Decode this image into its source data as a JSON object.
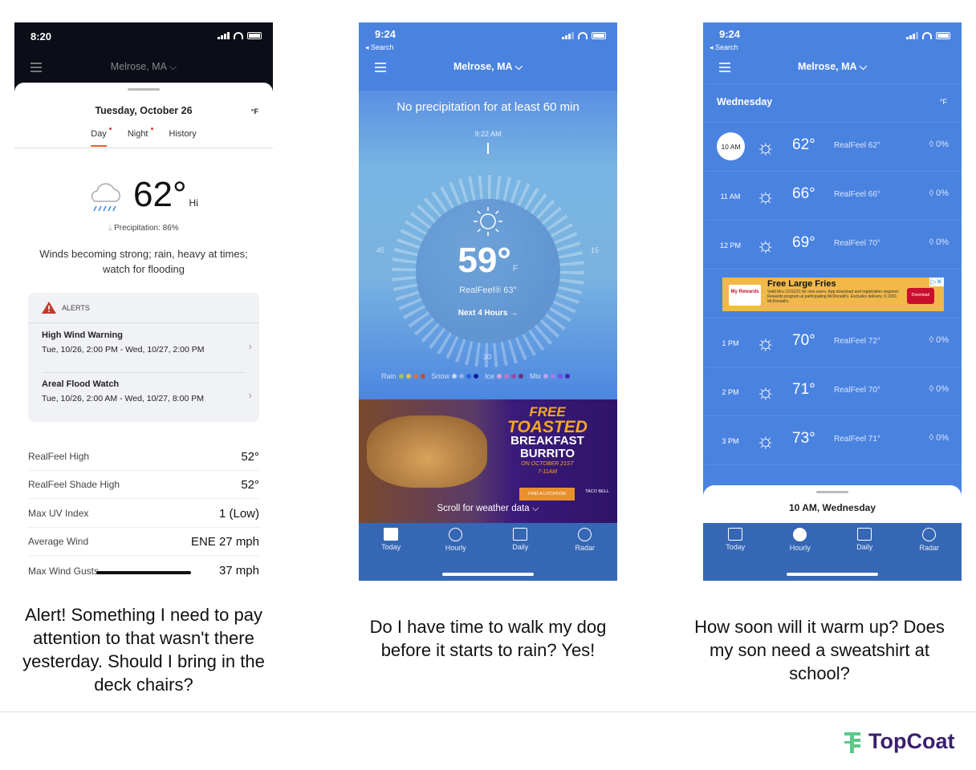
{
  "phone1": {
    "status_time": "8:20",
    "location": "Melrose, MA",
    "date": "Tuesday, October 26",
    "unit": "°F",
    "tabs": [
      {
        "label": "Day",
        "active": true,
        "dot": true
      },
      {
        "label": "Night",
        "dot": true
      },
      {
        "label": "History"
      }
    ],
    "temperature": "62°",
    "temp_suffix": "Hi",
    "weather_icon": "cloud-rain-icon",
    "precipitation": "Precipitation: 86%",
    "description": "Winds becoming strong; rain, heavy at times; watch for flooding",
    "alerts": {
      "title": "ALERTS",
      "items": [
        {
          "name": "High Wind Warning",
          "range": "Tue, 10/26, 2:00 PM - Wed, 10/27, 2:00 PM"
        },
        {
          "name": "Areal Flood Watch",
          "range": "Tue, 10/26, 2:00 AM - Wed, 10/27, 8:00 PM"
        }
      ]
    },
    "details": [
      {
        "label": "RealFeel High",
        "value": "52°"
      },
      {
        "label": "RealFeel Shade High",
        "value": "52°"
      },
      {
        "label": "Max UV Index",
        "value": "1 (Low)"
      },
      {
        "label": "Average Wind",
        "value": "ENE 27 mph"
      },
      {
        "label": "Max Wind Gusts",
        "value": "37 mph"
      }
    ]
  },
  "phone2": {
    "status_time": "9:24",
    "back_label": "◂ Search",
    "location": "Melrose, MA",
    "headline": "No precipitation for at least 60 min",
    "dial_time": "9:22 AM",
    "dial_labels": {
      "left": "45",
      "right": "15",
      "bottom": "30"
    },
    "temperature": "59°",
    "unit": "F",
    "realfeel": "RealFeel® 63°",
    "next_link": "Next 4 Hours →",
    "legend": [
      {
        "label": "Rain",
        "colors": [
          "#9bc16a",
          "#d9c44e",
          "#c9744e",
          "#b5553f"
        ]
      },
      {
        "label": "Snow",
        "colors": [
          "#c9d6f0",
          "#8fb0e8",
          "#2f5fe0",
          "#0a1e9a"
        ]
      },
      {
        "label": "Ice",
        "colors": [
          "#d7a4d9",
          "#c077c9",
          "#9a4aa8",
          "#6b2f7e"
        ]
      },
      {
        "label": "Mix",
        "colors": [
          "#b9a4f0",
          "#9f7fe8",
          "#7c4fe0",
          "#4a22b8"
        ]
      }
    ],
    "ad": {
      "line1": "FREE",
      "line2": "TOASTED",
      "line3": "BREAKFAST",
      "line4": "BURRITO",
      "line5": "ON OCTOBER 21ST",
      "line6": "7-11AM",
      "cta": "FIND A LOCATION",
      "brand": "TACO BELL"
    },
    "scroll_hint": "Scroll for weather data ⌵",
    "tabbar": [
      {
        "label": "Today"
      },
      {
        "label": "Hourly"
      },
      {
        "label": "Daily"
      },
      {
        "label": "Radar"
      }
    ]
  },
  "phone3": {
    "status_time": "9:24",
    "back_label": "◂ Search",
    "location": "Melrose, MA",
    "day": "Wednesday",
    "unit": "°F",
    "hours": [
      {
        "time": "10 AM",
        "temp": "62°",
        "realfeel": "RealFeel 62°",
        "precip": "0%",
        "selected": true
      },
      {
        "time": "11 AM",
        "temp": "66°",
        "realfeel": "RealFeel 66°",
        "precip": "0%"
      },
      {
        "time": "12 PM",
        "temp": "69°",
        "realfeel": "RealFeel 70°",
        "precip": "0%"
      },
      {
        "time": "1 PM",
        "temp": "70°",
        "realfeel": "RealFeel 72°",
        "precip": "0%"
      },
      {
        "time": "2 PM",
        "temp": "71°",
        "realfeel": "RealFeel 70°",
        "precip": "0%"
      },
      {
        "time": "3 PM",
        "temp": "73°",
        "realfeel": "RealFeel 71°",
        "precip": "0%"
      }
    ],
    "ad": {
      "brand": "My Rewards",
      "title": "Free Large Fries",
      "body": "Valid thru 12/31/21 for new users. App download and registration required. Rewards program at participating McDonald's. Excludes delivery. © 2021 McDonald's.",
      "cta": "Download"
    },
    "sheet_title": "10 AM, Wednesday",
    "tabbar": [
      {
        "label": "Today"
      },
      {
        "label": "Hourly",
        "active": true
      },
      {
        "label": "Daily"
      },
      {
        "label": "Radar"
      }
    ]
  },
  "captions": [
    "Alert! Something I need to pay attention to that wasn't there yesterday.  Should I bring in the deck chairs?",
    "Do I have time to walk my dog before it starts to rain? Yes!",
    "How soon will it warm up? Does my son need a sweatshirt at school?"
  ],
  "logo": {
    "text": "TopCoat",
    "color": "#3b1f6e",
    "icon_color": "#5cc98a"
  }
}
